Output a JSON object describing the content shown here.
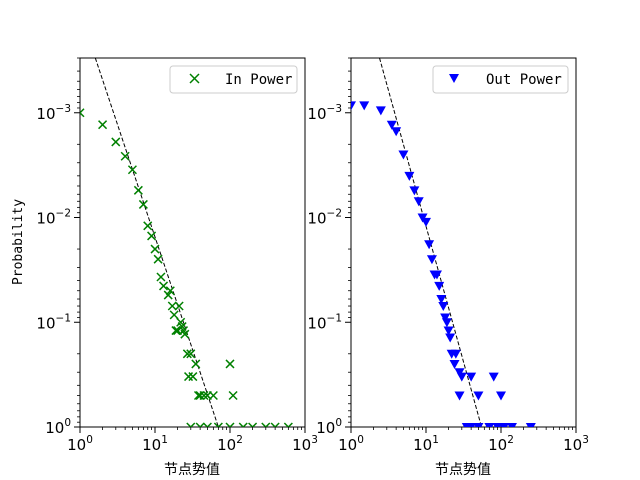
{
  "chart_data": [
    {
      "type": "scatter",
      "xscale": "log",
      "yscale": "log",
      "y_inverted": true,
      "xlim": [
        1,
        1000
      ],
      "ylim": [
        1,
        0.0003
      ],
      "xlabel": "节点势值",
      "ylabel": "Probability",
      "x_ticks": [
        {
          "base": "10",
          "exp": "0"
        },
        {
          "base": "10",
          "exp": "1"
        },
        {
          "base": "10",
          "exp": "2"
        },
        {
          "base": "10",
          "exp": "3"
        }
      ],
      "y_ticks": [
        {
          "base": "10",
          "exp": "−3",
          "value": 0.001
        },
        {
          "base": "10",
          "exp": "−2",
          "value": 0.01
        },
        {
          "base": "10",
          "exp": "−1",
          "value": 0.1
        },
        {
          "base": "10",
          "exp": "0",
          "value": 1
        }
      ],
      "legend_position": "top-right",
      "series": [
        {
          "name": "In Power",
          "marker": "x",
          "color": "#008000",
          "points": [
            [
              1,
              0.001
            ],
            [
              2,
              0.0013
            ],
            [
              3,
              0.0019
            ],
            [
              4,
              0.0026
            ],
            [
              5,
              0.0035
            ],
            [
              6,
              0.0055
            ],
            [
              7,
              0.0075
            ],
            [
              8,
              0.012
            ],
            [
              9,
              0.015
            ],
            [
              10,
              0.02
            ],
            [
              11,
              0.025
            ],
            [
              12,
              0.037
            ],
            [
              13,
              0.045
            ],
            [
              15,
              0.055
            ],
            [
              16,
              0.05
            ],
            [
              17,
              0.07
            ],
            [
              18,
              0.085
            ],
            [
              19,
              0.12
            ],
            [
              20,
              0.12
            ],
            [
              21,
              0.07
            ],
            [
              22,
              0.1
            ],
            [
              23,
              0.11
            ],
            [
              24,
              0.12
            ],
            [
              25,
              0.13
            ],
            [
              27,
              0.2
            ],
            [
              28,
              0.33
            ],
            [
              30,
              0.2
            ],
            [
              32,
              0.33
            ],
            [
              35,
              0.25
            ],
            [
              38,
              0.5
            ],
            [
              40,
              0.5
            ],
            [
              45,
              0.5
            ],
            [
              50,
              0.5
            ],
            [
              60,
              0.5
            ],
            [
              100,
              0.25
            ],
            [
              110,
              0.5
            ],
            [
              30,
              1
            ],
            [
              40,
              1
            ],
            [
              50,
              1
            ],
            [
              70,
              1
            ],
            [
              100,
              1
            ],
            [
              150,
              1
            ],
            [
              200,
              1
            ],
            [
              300,
              1
            ],
            [
              400,
              1
            ],
            [
              600,
              1
            ]
          ]
        },
        {
          "name": "Out Power",
          "marker": "triangle-down",
          "color": "#0000ff",
          "points": [
            [
              1,
              0.00085
            ],
            [
              1.5,
              0.00085
            ],
            [
              3,
              0.001
            ],
            [
              4,
              0.0013
            ],
            [
              5,
              0.0015
            ],
            [
              6,
              0.0025
            ],
            [
              7,
              0.004
            ],
            [
              8,
              0.0055
            ],
            [
              9,
              0.007
            ],
            [
              10,
              0.01
            ],
            [
              11,
              0.011
            ],
            [
              12,
              0.018
            ],
            [
              13,
              0.025
            ],
            [
              14,
              0.035
            ],
            [
              15,
              0.035
            ],
            [
              16,
              0.045
            ],
            [
              17,
              0.06
            ],
            [
              18,
              0.07
            ],
            [
              20,
              0.09
            ],
            [
              21,
              0.1
            ],
            [
              22,
              0.12
            ],
            [
              24,
              0.14
            ],
            [
              25,
              0.2
            ],
            [
              28,
              0.25
            ],
            [
              30,
              0.2
            ],
            [
              35,
              0.3
            ],
            [
              40,
              0.33
            ],
            [
              50,
              0.33
            ],
            [
              60,
              0.5
            ],
            [
              100,
              0.33
            ],
            [
              120,
              0.5
            ],
            [
              30,
              0.5
            ],
            [
              40,
              1
            ],
            [
              50,
              1
            ],
            [
              60,
              1
            ],
            [
              80,
              1
            ],
            [
              100,
              1
            ],
            [
              120,
              1
            ],
            [
              150,
              1
            ],
            [
              250,
              1
            ]
          ]
        }
      ],
      "fit_lines": [
        {
          "style": "dashed",
          "color": "#000000",
          "x1": 1.6,
          "y1": 0.0003,
          "x2": 70,
          "y2": 1
        }
      ]
    },
    {
      "type": "scatter",
      "xscale": "log",
      "yscale": "log",
      "y_inverted": true,
      "xlim": [
        1,
        1000
      ],
      "ylim": [
        1,
        0.0003
      ],
      "xlabel": "节点势值",
      "ylabel": "",
      "x_ticks": [
        {
          "base": "10",
          "exp": "0"
        },
        {
          "base": "10",
          "exp": "1"
        },
        {
          "base": "10",
          "exp": "2"
        },
        {
          "base": "10",
          "exp": "3"
        }
      ],
      "y_ticks": [
        {
          "base": "10",
          "exp": "−3",
          "value": 0.001
        },
        {
          "base": "10",
          "exp": "−2",
          "value": 0.01
        },
        {
          "base": "10",
          "exp": "−1",
          "value": 0.1
        },
        {
          "base": "10",
          "exp": "0",
          "value": 1
        }
      ],
      "legend_position": "top-right",
      "series": [
        {
          "name": "Out Power",
          "marker": "triangle-down",
          "color": "#0000ff",
          "points": [
            [
              1,
              0.00085
            ],
            [
              1.5,
              0.00085
            ],
            [
              2.5,
              0.00095
            ],
            [
              3.5,
              0.0013
            ],
            [
              4,
              0.0015
            ],
            [
              5,
              0.0025
            ],
            [
              6,
              0.004
            ],
            [
              7,
              0.0055
            ],
            [
              8,
              0.007
            ],
            [
              9,
              0.01
            ],
            [
              10,
              0.011
            ],
            [
              11,
              0.018
            ],
            [
              12,
              0.025
            ],
            [
              13,
              0.035
            ],
            [
              14,
              0.035
            ],
            [
              15,
              0.045
            ],
            [
              16,
              0.06
            ],
            [
              17,
              0.07
            ],
            [
              18,
              0.09
            ],
            [
              19,
              0.1
            ],
            [
              20,
              0.12
            ],
            [
              21,
              0.14
            ],
            [
              22,
              0.2
            ],
            [
              24,
              0.25
            ],
            [
              25,
              0.2
            ],
            [
              28,
              0.3
            ],
            [
              30,
              0.33
            ],
            [
              40,
              0.33
            ],
            [
              50,
              0.5
            ],
            [
              80,
              0.33
            ],
            [
              100,
              0.5
            ],
            [
              28,
              0.5
            ],
            [
              35,
              1
            ],
            [
              40,
              1
            ],
            [
              50,
              1
            ],
            [
              70,
              1
            ],
            [
              90,
              1
            ],
            [
              110,
              1
            ],
            [
              140,
              1
            ],
            [
              250,
              1
            ]
          ]
        }
      ],
      "fit_lines": [
        {
          "style": "dashed",
          "color": "#000000",
          "x1": 2.4,
          "y1": 0.0003,
          "x2": 55,
          "y2": 1
        }
      ]
    }
  ],
  "ui": {
    "legend_left": "In Power",
    "legend_right": "Out Power"
  }
}
